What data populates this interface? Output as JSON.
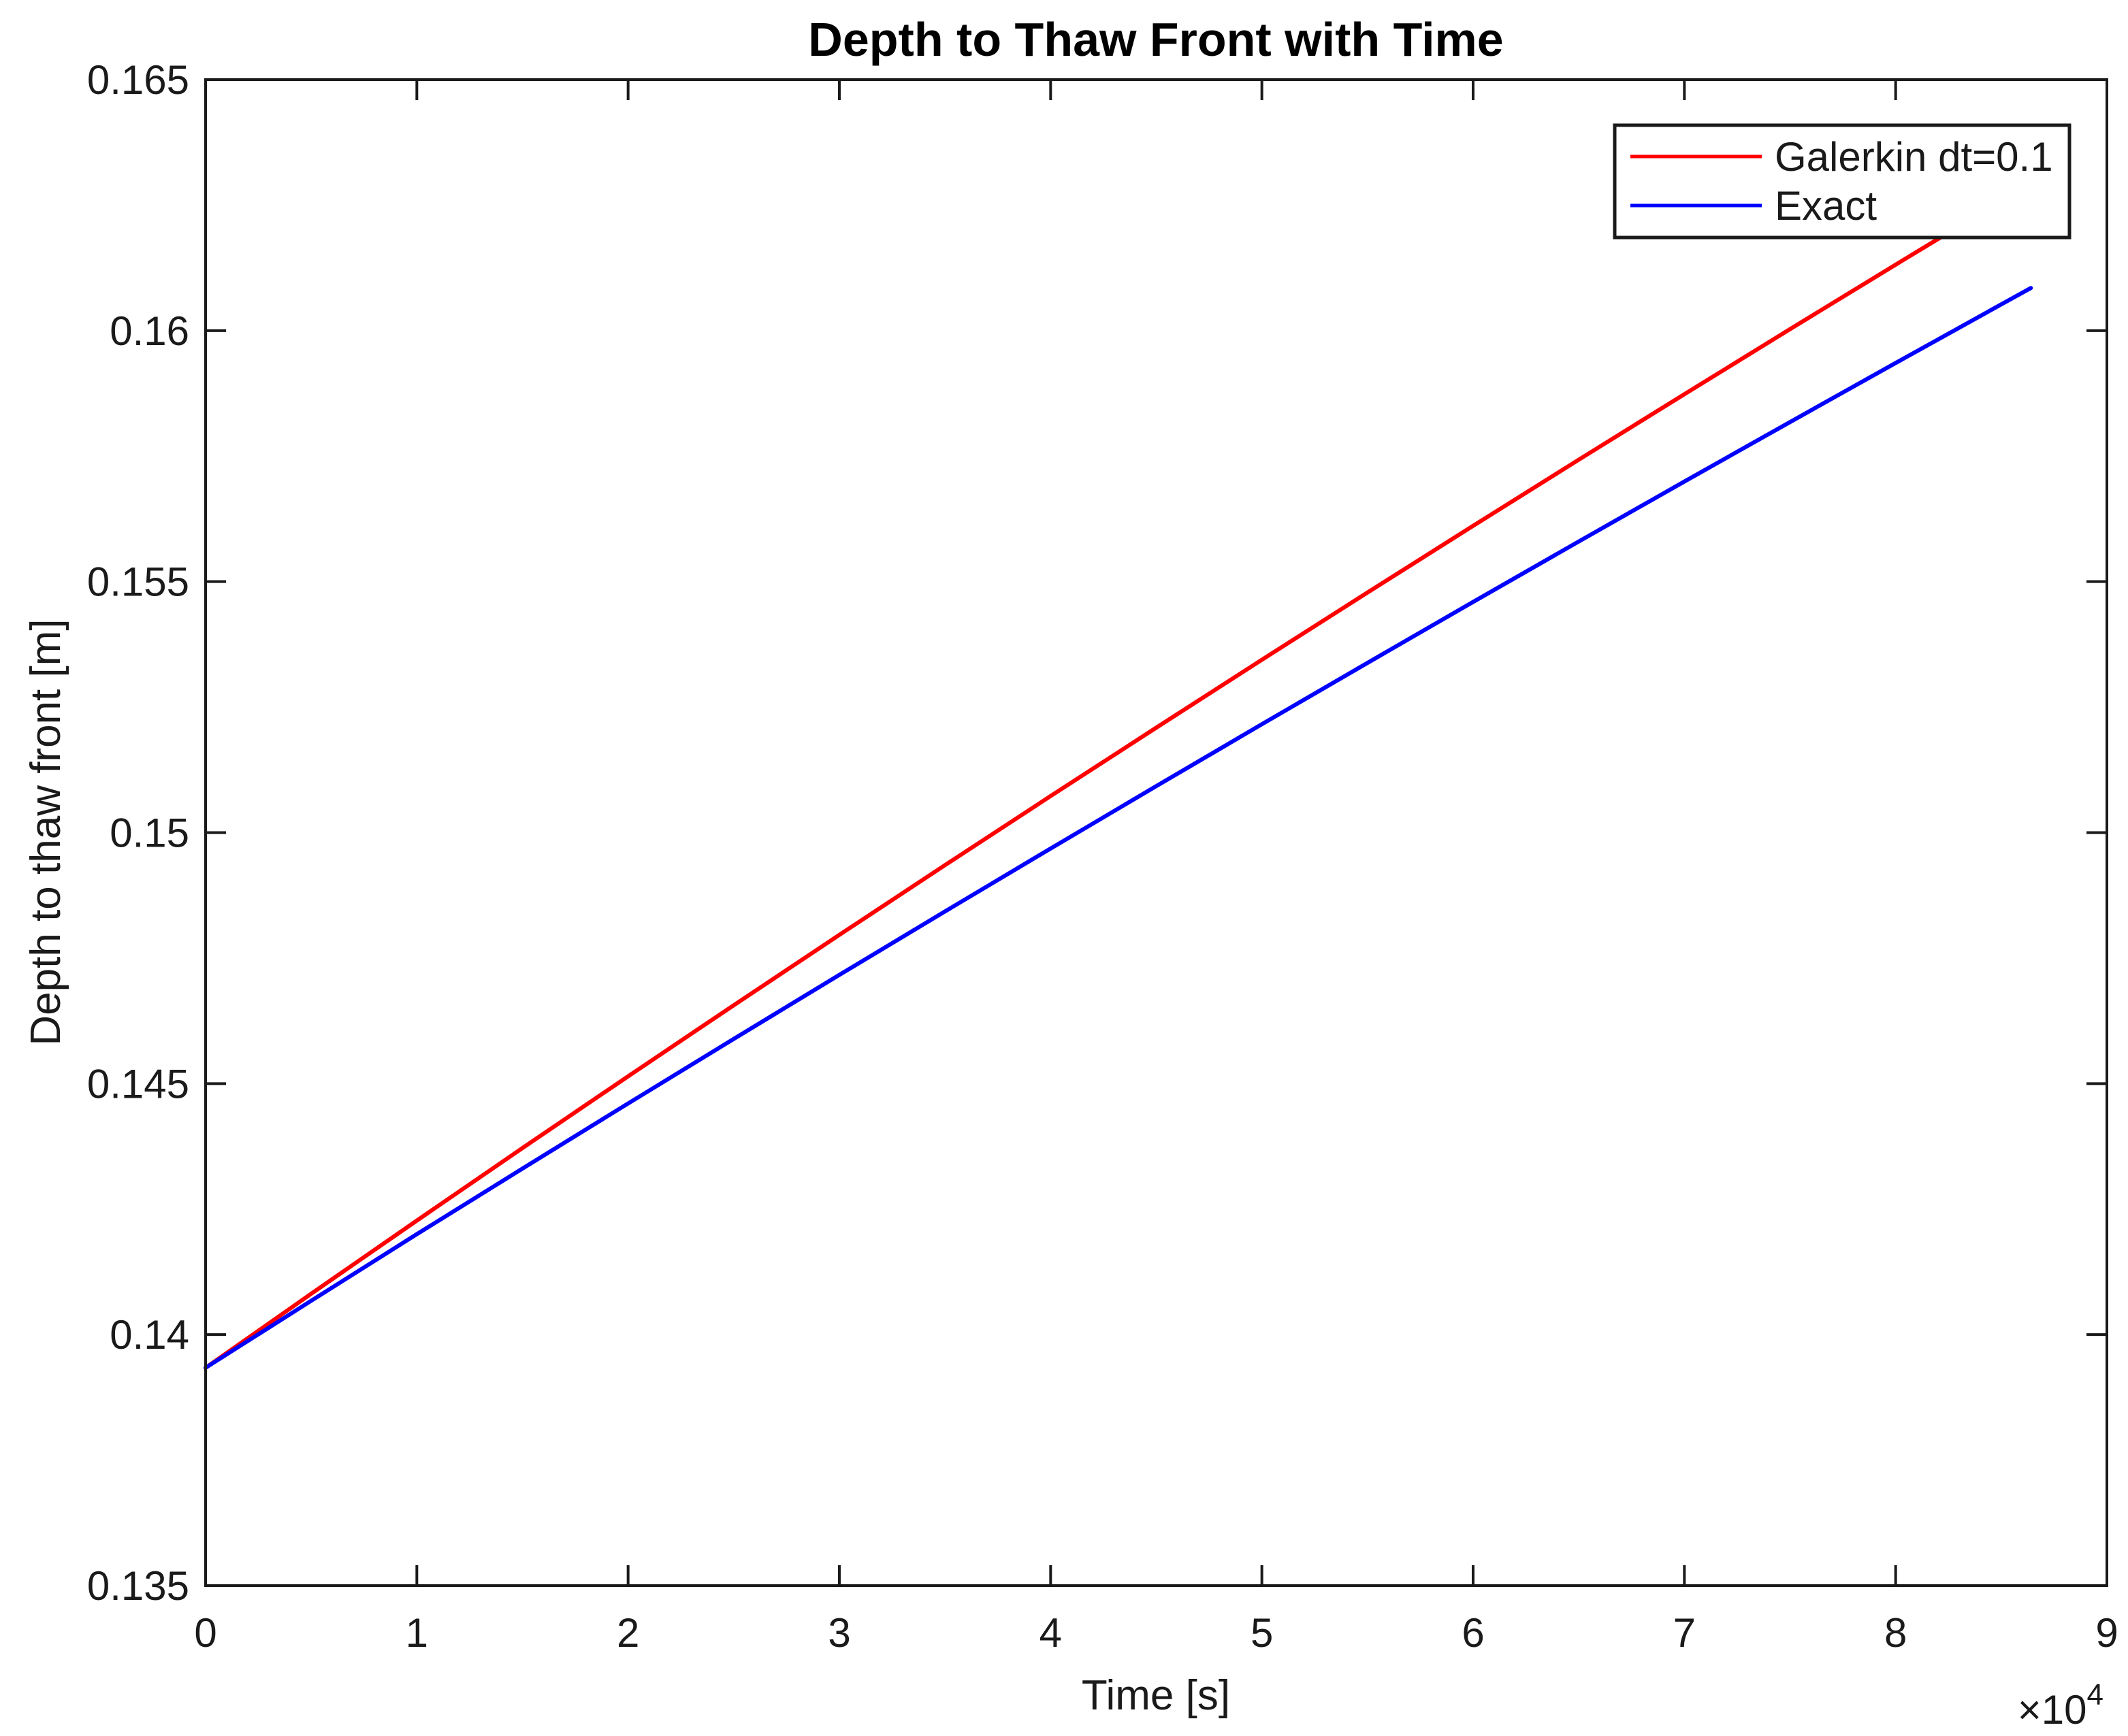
{
  "figure": {
    "background": "#ffffff",
    "axis_color": "#1a1a1a"
  },
  "chart_data": {
    "type": "line",
    "title": "Depth to Thaw Front with Time",
    "xlabel": "Time [s]",
    "ylabel": "Depth to thaw front [m]",
    "x_offset_base": "×10",
    "x_offset_exponent": "4",
    "xlim": [
      0,
      90000
    ],
    "ylim": [
      0.135,
      0.165
    ],
    "x_ticks": [
      0,
      10000,
      20000,
      30000,
      40000,
      50000,
      60000,
      70000,
      80000,
      90000
    ],
    "x_tick_labels": [
      "0",
      "1",
      "2",
      "3",
      "4",
      "5",
      "6",
      "7",
      "8",
      "9"
    ],
    "y_ticks": [
      0.135,
      0.14,
      0.145,
      0.15,
      0.155,
      0.16,
      0.165
    ],
    "y_tick_labels": [
      "0.135",
      "0.14",
      "0.145",
      "0.15",
      "0.155",
      "0.16",
      "0.165"
    ],
    "grid": false,
    "legend": {
      "position": "top-right",
      "entries": [
        {
          "label": "Galerkin dt=0.1",
          "color": "#ff0000"
        },
        {
          "label": "Exact",
          "color": "#0000ff"
        }
      ]
    },
    "series": [
      {
        "name": "Galerkin dt=0.1",
        "color": "#ff0000",
        "x": [
          0,
          5000,
          10000,
          15000,
          20000,
          25000,
          30000,
          35000,
          40000,
          45000,
          50000,
          55000,
          60000,
          65000,
          70000,
          75000,
          80000,
          85000,
          86400
        ],
        "y": [
          0.13934,
          0.140814,
          0.142272,
          0.143716,
          0.145146,
          0.146561,
          0.147963,
          0.149352,
          0.150728,
          0.152091,
          0.153443,
          0.154783,
          0.156111,
          0.157429,
          0.158733,
          0.160029,
          0.161314,
          0.162589,
          0.162944
        ]
      },
      {
        "name": "Exact",
        "color": "#0000ff",
        "x": [
          0,
          5000,
          10000,
          15000,
          20000,
          25000,
          30000,
          35000,
          40000,
          45000,
          50000,
          55000,
          60000,
          65000,
          70000,
          75000,
          80000,
          85000,
          86400
        ],
        "y": [
          0.13934,
          0.140675,
          0.142001,
          0.143307,
          0.144605,
          0.14589,
          0.147165,
          0.14843,
          0.149683,
          0.150926,
          0.152159,
          0.153381,
          0.154595,
          0.155799,
          0.156993,
          0.158178,
          0.159355,
          0.160523,
          0.160849
        ]
      }
    ]
  }
}
